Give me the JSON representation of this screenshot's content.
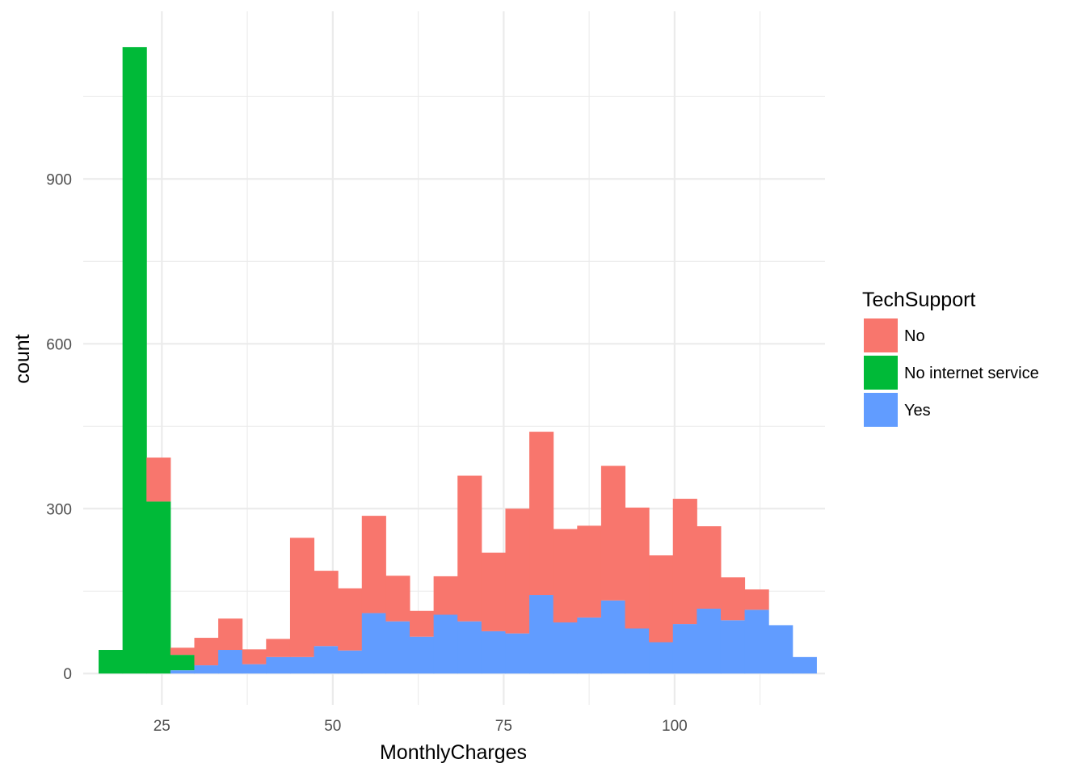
{
  "chart_data": {
    "type": "bar",
    "subtype": "stacked-histogram",
    "xlabel": "MonthlyCharges",
    "ylabel": "count",
    "xlim": [
      13.5,
      122
    ],
    "ylim": [
      -57,
      1205
    ],
    "x_ticks": [
      25,
      50,
      75,
      100
    ],
    "y_ticks": [
      0,
      300,
      600,
      900
    ],
    "x_tick_labels": [
      "25",
      "50",
      "75",
      "100"
    ],
    "y_tick_labels": [
      "0",
      "300",
      "600",
      "900"
    ],
    "grid": true,
    "legend": {
      "title": "TechSupport",
      "position": "right",
      "entries": [
        "No",
        "No internet service",
        "Yes"
      ]
    },
    "colors": {
      "No": "#F8766D",
      "No internet service": "#00BA38",
      "Yes": "#619CFF"
    },
    "bin_width": 3.5,
    "bin_centers": [
      17.5,
      21.0,
      24.5,
      28.0,
      31.5,
      35.0,
      38.5,
      42.0,
      45.5,
      49.0,
      52.5,
      56.0,
      59.5,
      63.0,
      66.5,
      70.0,
      73.5,
      77.0,
      80.5,
      84.0,
      87.5,
      91.0,
      94.5,
      98.0,
      101.5,
      105.0,
      108.5,
      112.0,
      115.5,
      119.0
    ],
    "series": [
      {
        "name": "Yes",
        "values": [
          0,
          0,
          0,
          6,
          15,
          43,
          17,
          30,
          30,
          50,
          42,
          110,
          95,
          67,
          107,
          95,
          77,
          73,
          143,
          93,
          102,
          133,
          82,
          57,
          90,
          118,
          97,
          116,
          88,
          30
        ]
      },
      {
        "name": "No internet service",
        "values": [
          43,
          1140,
          313,
          28,
          0,
          0,
          0,
          0,
          0,
          0,
          0,
          0,
          0,
          0,
          0,
          0,
          0,
          0,
          0,
          0,
          0,
          0,
          0,
          0,
          0,
          0,
          0,
          0,
          0,
          0
        ]
      },
      {
        "name": "No",
        "values": [
          0,
          0,
          80,
          13,
          50,
          57,
          27,
          33,
          217,
          137,
          113,
          177,
          83,
          47,
          70,
          265,
          143,
          227,
          297,
          170,
          167,
          245,
          220,
          158,
          228,
          150,
          78,
          37,
          0,
          0
        ]
      }
    ]
  }
}
